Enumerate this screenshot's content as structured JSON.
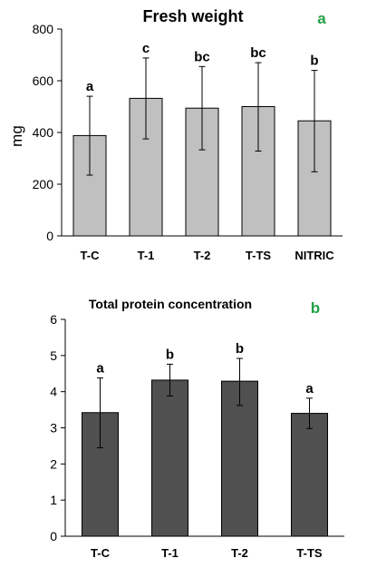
{
  "chart_data": [
    {
      "type": "bar",
      "title": "Fresh weight",
      "panel_label": "a",
      "panel_label_color": "#22a045",
      "ylabel": "mg",
      "xlabel": "",
      "ylim": [
        0,
        800
      ],
      "yticks": [
        0,
        200,
        400,
        600,
        800
      ],
      "grid": false,
      "bar_color": "#c0c0c0",
      "categories": [
        "T-C",
        "T-1",
        "T-2",
        "T-TS",
        "NITRIC"
      ],
      "values": [
        388,
        532,
        494,
        500,
        445
      ],
      "error_low": [
        235,
        375,
        333,
        328,
        248
      ],
      "error_high": [
        540,
        688,
        655,
        670,
        640
      ],
      "significance_labels": [
        "a",
        "c",
        "bc",
        "bc",
        "b"
      ]
    },
    {
      "type": "bar",
      "title": "Total protein concentration",
      "panel_label": "b",
      "panel_label_color": "#22a045",
      "ylabel": "",
      "xlabel": "",
      "ylim": [
        0,
        6
      ],
      "yticks": [
        0,
        1,
        2,
        3,
        4,
        5,
        6
      ],
      "grid": false,
      "bar_color": "#505050",
      "categories": [
        "T-C",
        "T-1",
        "T-2",
        "T-TS"
      ],
      "values": [
        3.42,
        4.32,
        4.29,
        3.4
      ],
      "error_low": [
        2.45,
        3.88,
        3.62,
        2.98
      ],
      "error_high": [
        4.38,
        4.76,
        4.92,
        3.82
      ],
      "significance_labels": [
        "a",
        "b",
        "b",
        "a"
      ]
    }
  ]
}
